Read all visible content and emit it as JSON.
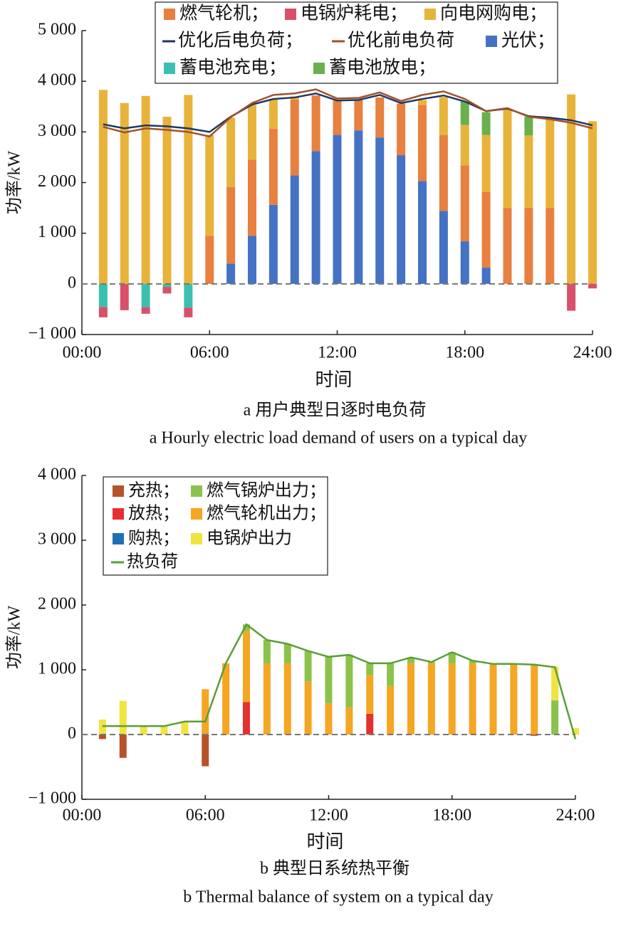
{
  "chart_data": [
    {
      "type": "bar",
      "stacked": true,
      "caption": "a  用户典型日逐时电负荷",
      "caption_en": "a  Hourly electric load demand of users on a typical day",
      "ylabel": "功率/kW",
      "xlabel": "时间",
      "x": [
        1,
        2,
        3,
        4,
        5,
        6,
        7,
        8,
        9,
        10,
        11,
        12,
        13,
        14,
        15,
        16,
        17,
        18,
        19,
        20,
        21,
        22,
        23,
        24
      ],
      "xlim": [
        0,
        24
      ],
      "xticks": [
        {
          "value": 0,
          "label": "00:00"
        },
        {
          "value": 6,
          "label": "06:00"
        },
        {
          "value": 12,
          "label": "12:00"
        },
        {
          "value": 18,
          "label": "18:00"
        },
        {
          "value": 24,
          "label": "24:00"
        }
      ],
      "ylim": [
        -1000,
        5000
      ],
      "yticks": [
        {
          "value": -1000,
          "label": "−1 000"
        },
        0,
        {
          "value": 1000,
          "label": "1 000"
        },
        {
          "value": 2000,
          "label": "2 000"
        },
        {
          "value": 3000,
          "label": "3 000"
        },
        {
          "value": 4000,
          "label": "4 000"
        },
        {
          "value": 5000,
          "label": "5 000"
        }
      ],
      "grid": false,
      "series": [
        {
          "name": "燃气轮机；",
          "color": "#e8803f",
          "values": [
            0,
            0,
            0,
            0,
            0,
            950,
            1510,
            1500,
            1500,
            1500,
            1100,
            680,
            600,
            790,
            1020,
            1500,
            1500,
            1500,
            1500,
            1500,
            1500,
            1500,
            0,
            0
          ]
        },
        {
          "name": "电锅炉耗电；",
          "color": "#d9506a",
          "values": [
            -200,
            -520,
            -130,
            -130,
            -190,
            0,
            0,
            0,
            0,
            0,
            0,
            0,
            0,
            0,
            0,
            0,
            0,
            0,
            0,
            0,
            0,
            0,
            -530,
            -90
          ]
        },
        {
          "name": "向电网购电；",
          "color": "#e8b33a",
          "values": [
            3830,
            3570,
            3710,
            3300,
            3730,
            1990,
            1370,
            1080,
            590,
            60,
            0,
            0,
            0,
            0,
            0,
            100,
            750,
            800,
            1120,
            1960,
            1430,
            1760,
            3740,
            3210
          ]
        },
        {
          "name": "优化后电负荷；",
          "color": "#1f3864",
          "type": "line",
          "values": [
            3150,
            3070,
            3130,
            3110,
            3070,
            3000,
            3300,
            3540,
            3650,
            3680,
            3760,
            3620,
            3630,
            3730,
            3570,
            3650,
            3720,
            3600,
            3410,
            3460,
            3310,
            3280,
            3230,
            3130
          ]
        },
        {
          "name": "优化前电负荷",
          "color": "#a0522d",
          "type": "line",
          "values": [
            3100,
            2990,
            3070,
            3040,
            3000,
            2910,
            3290,
            3570,
            3730,
            3760,
            3840,
            3660,
            3670,
            3780,
            3610,
            3730,
            3800,
            3650,
            3410,
            3470,
            3300,
            3250,
            3180,
            3070
          ]
        },
        {
          "name": "光伏；",
          "color": "#4472c4",
          "values": [
            0,
            0,
            0,
            0,
            0,
            0,
            400,
            950,
            1560,
            2140,
            2620,
            2940,
            3030,
            2890,
            2540,
            2030,
            1440,
            840,
            320,
            0,
            0,
            0,
            0,
            0
          ]
        },
        {
          "name": "蓄电池充电；",
          "color": "#3cbfb0",
          "values": [
            -460,
            0,
            -460,
            -60,
            -470,
            0,
            0,
            0,
            0,
            0,
            0,
            0,
            0,
            0,
            0,
            0,
            0,
            0,
            0,
            0,
            0,
            0,
            0,
            0
          ]
        },
        {
          "name": "蓄电池放电；",
          "color": "#6ab04c",
          "values": [
            0,
            0,
            0,
            0,
            0,
            0,
            0,
            0,
            0,
            0,
            0,
            0,
            0,
            0,
            0,
            0,
            0,
            460,
            450,
            0,
            370,
            0,
            0,
            0
          ]
        }
      ]
    },
    {
      "type": "bar",
      "stacked": true,
      "caption": "b  典型日系统热平衡",
      "caption_en": "b  Thermal balance of system on a typical day",
      "ylabel": "功率/kW",
      "xlabel": "时间",
      "x": [
        1,
        2,
        3,
        4,
        5,
        6,
        7,
        8,
        9,
        10,
        11,
        12,
        13,
        14,
        15,
        16,
        17,
        18,
        19,
        20,
        21,
        22,
        23,
        24
      ],
      "xlim": [
        0,
        24
      ],
      "xticks": [
        {
          "value": 0,
          "label": "00:00"
        },
        {
          "value": 6,
          "label": "06:00"
        },
        {
          "value": 12,
          "label": "12:00"
        },
        {
          "value": 18,
          "label": "18:00"
        },
        {
          "value": 24,
          "label": "24:00"
        }
      ],
      "ylim": [
        -1000,
        4000
      ],
      "yticks": [
        {
          "value": -1000,
          "label": "−1 000"
        },
        0,
        {
          "value": 1000,
          "label": "1 000"
        },
        {
          "value": 2000,
          "label": "2 000"
        },
        {
          "value": 3000,
          "label": "3 000"
        },
        {
          "value": 4000,
          "label": "4 000"
        }
      ],
      "grid": false,
      "series": [
        {
          "name": "充热；",
          "color": "#b5532a",
          "values": [
            -70,
            -360,
            0,
            0,
            0,
            -490,
            0,
            0,
            0,
            0,
            0,
            0,
            0,
            0,
            0,
            0,
            0,
            0,
            0,
            0,
            0,
            -20,
            0,
            0
          ]
        },
        {
          "name": "燃气锅炉出力；",
          "color": "#8bc34a",
          "values": [
            0,
            0,
            0,
            0,
            0,
            0,
            0,
            100,
            360,
            300,
            470,
            720,
            810,
            180,
            350,
            90,
            20,
            170,
            40,
            0,
            0,
            0,
            530,
            0
          ]
        },
        {
          "name": "放热；",
          "color": "#e53030",
          "values": [
            0,
            0,
            0,
            0,
            0,
            0,
            0,
            500,
            0,
            0,
            0,
            0,
            0,
            320,
            0,
            0,
            0,
            0,
            0,
            0,
            0,
            0,
            0,
            0
          ]
        },
        {
          "name": "燃气轮机出力；",
          "color": "#f5a623",
          "values": [
            0,
            0,
            0,
            0,
            0,
            700,
            1100,
            1100,
            1100,
            1100,
            820,
            480,
            420,
            600,
            750,
            1100,
            1100,
            1100,
            1100,
            1090,
            1090,
            1080,
            0,
            0
          ]
        },
        {
          "name": "购热；",
          "color": "#1f6fb5",
          "values": [
            0,
            0,
            0,
            0,
            0,
            0,
            0,
            0,
            0,
            0,
            0,
            0,
            0,
            0,
            0,
            0,
            0,
            0,
            0,
            0,
            0,
            0,
            0,
            0
          ]
        },
        {
          "name": "电锅炉出力",
          "color": "#f0e442",
          "values": [
            230,
            520,
            130,
            130,
            210,
            0,
            0,
            0,
            0,
            0,
            0,
            0,
            0,
            0,
            0,
            0,
            0,
            0,
            0,
            0,
            0,
            0,
            520,
            100
          ]
        },
        {
          "name": "热负荷",
          "color": "#5a9e3a",
          "type": "line",
          "values": [
            130,
            130,
            130,
            130,
            200,
            200,
            1100,
            1700,
            1460,
            1400,
            1290,
            1200,
            1230,
            1100,
            1100,
            1190,
            1120,
            1270,
            1140,
            1090,
            1090,
            1080,
            1040,
            -70
          ]
        }
      ]
    }
  ]
}
